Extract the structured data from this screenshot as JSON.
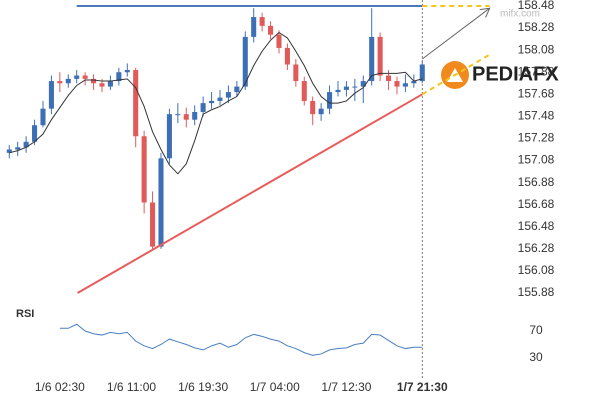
{
  "chart_data": {
    "type": "candlestick",
    "x": [
      0,
      1,
      2,
      3,
      4,
      5,
      6,
      7,
      8,
      9,
      10,
      11,
      12,
      13,
      14,
      15,
      16,
      17,
      18,
      19,
      20,
      21,
      22,
      23,
      24,
      25,
      26,
      27,
      28,
      29,
      30,
      31,
      32,
      33,
      34,
      35,
      36,
      37,
      38,
      39,
      40,
      41,
      42,
      43,
      44,
      45,
      46,
      47,
      48,
      49
    ],
    "open": [
      157.15,
      157.18,
      157.2,
      157.25,
      157.4,
      157.55,
      157.8,
      157.78,
      157.82,
      157.85,
      157.82,
      157.78,
      157.75,
      157.8,
      157.88,
      157.9,
      157.3,
      156.7,
      156.3,
      157.1,
      157.5,
      157.5,
      157.45,
      157.52,
      157.6,
      157.62,
      157.65,
      157.7,
      157.75,
      158.2,
      158.38,
      158.3,
      158.22,
      158.1,
      157.95,
      157.8,
      157.62,
      157.5,
      157.55,
      157.7,
      157.72,
      157.75,
      157.75,
      157.8,
      158.2,
      157.85,
      157.8,
      157.75,
      157.78,
      157.8
    ],
    "high": [
      157.22,
      157.25,
      157.3,
      157.45,
      157.62,
      157.85,
      157.88,
      157.86,
      157.9,
      157.88,
      157.86,
      157.82,
      157.85,
      157.92,
      157.96,
      157.92,
      157.35,
      156.8,
      157.15,
      157.55,
      157.6,
      157.56,
      157.58,
      157.66,
      157.7,
      157.72,
      157.76,
      157.8,
      158.25,
      158.46,
      158.42,
      158.34,
      158.26,
      158.14,
      158.0,
      157.84,
      157.66,
      157.6,
      157.76,
      157.8,
      157.8,
      157.82,
      157.85,
      158.46,
      158.24,
      157.9,
      157.84,
      157.86,
      157.86,
      157.98
    ],
    "low": [
      157.1,
      157.12,
      157.15,
      157.22,
      157.38,
      157.5,
      157.7,
      157.74,
      157.78,
      157.76,
      157.72,
      157.7,
      157.72,
      157.76,
      157.84,
      157.2,
      156.6,
      156.28,
      156.28,
      157.05,
      157.42,
      157.38,
      157.4,
      157.48,
      157.55,
      157.58,
      157.6,
      157.66,
      157.72,
      158.15,
      158.25,
      158.18,
      158.05,
      157.9,
      157.75,
      157.58,
      157.4,
      157.44,
      157.5,
      157.66,
      157.66,
      157.62,
      157.6,
      157.76,
      157.8,
      157.72,
      157.68,
      157.7,
      157.74,
      157.78
    ],
    "close": [
      157.18,
      157.2,
      157.25,
      157.4,
      157.55,
      157.8,
      157.78,
      157.82,
      157.85,
      157.82,
      157.78,
      157.75,
      157.8,
      157.88,
      157.9,
      157.3,
      156.7,
      156.3,
      157.1,
      157.5,
      157.5,
      157.45,
      157.52,
      157.6,
      157.62,
      157.65,
      157.7,
      157.75,
      158.2,
      158.38,
      158.3,
      158.22,
      158.1,
      157.95,
      157.8,
      157.62,
      157.5,
      157.55,
      157.7,
      157.72,
      157.75,
      157.75,
      157.8,
      158.2,
      157.85,
      157.8,
      157.75,
      157.78,
      157.8,
      157.95
    ],
    "up_color": "#3d6fb5",
    "down_color": "#e05a5a",
    "ma": {
      "color": "#333333",
      "values": [
        157.15,
        157.17,
        157.2,
        157.25,
        157.32,
        157.45,
        157.56,
        157.67,
        157.76,
        157.81,
        157.81,
        157.8,
        157.8,
        157.81,
        157.82,
        157.74,
        157.57,
        157.34,
        157.18,
        157.04,
        156.96,
        157.05,
        157.26,
        157.5,
        157.54,
        157.57,
        157.62,
        157.66,
        157.78,
        157.94,
        158.07,
        158.17,
        158.24,
        158.19,
        158.07,
        157.94,
        157.78,
        157.66,
        157.6,
        157.6,
        157.62,
        157.69,
        157.74,
        157.85,
        157.87,
        157.87,
        157.87,
        157.88,
        157.8,
        157.82
      ]
    },
    "xlim": [
      -1.1,
      68.9
    ],
    "xticks": [
      {
        "value": 6,
        "label": "1/6 02:30"
      },
      {
        "value": 14.5,
        "label": "1/6 11:00"
      },
      {
        "value": 23,
        "label": "1/6 19:30"
      },
      {
        "value": 31.5,
        "label": "1/7 04:00"
      },
      {
        "value": 40,
        "label": "1/7 12:30"
      },
      {
        "value": 49,
        "label": "1/7 21:30"
      }
    ],
    "ylim": [
      155.88,
      158.48
    ],
    "yticks": [
      155.88,
      156.08,
      156.28,
      156.48,
      156.68,
      156.88,
      157.08,
      157.28,
      157.48,
      157.68,
      157.88,
      158.08,
      158.28,
      158.48
    ],
    "lines": [
      {
        "x": [
          8,
          49
        ],
        "y": [
          158.48,
          158.48
        ],
        "color": "#4a78b8",
        "dashed": false,
        "arrow": false
      },
      {
        "x": [
          49,
          57
        ],
        "y": [
          158.48,
          158.48
        ],
        "color": "#f5c518",
        "dashed": true,
        "arrow": false
      },
      {
        "x": [
          8.1,
          49
        ],
        "y": [
          155.88,
          157.68
        ],
        "color": "#e85c5c",
        "dashed": false,
        "arrow": false
      },
      {
        "x": [
          49,
          57
        ],
        "y": [
          157.68,
          158.04
        ],
        "color": "#f5c518",
        "dashed": true,
        "arrow": false
      },
      {
        "x": [
          49,
          57
        ],
        "y": [
          158.0,
          158.46
        ],
        "color": "#666666",
        "dashed": false,
        "arrow": true
      }
    ],
    "current_x": 49,
    "rsi": {
      "label": "RSI",
      "color": "#4a7fc0",
      "ylim": [
        10,
        90
      ],
      "yticks": [
        30,
        70
      ],
      "values": [
        null,
        null,
        null,
        null,
        null,
        null,
        74,
        74,
        80,
        70,
        66,
        64,
        68,
        66,
        68,
        55,
        48,
        44,
        50,
        58,
        54,
        50,
        45,
        42,
        48,
        52,
        46,
        50,
        60,
        65,
        62,
        58,
        55,
        48,
        44,
        38,
        34,
        36,
        42,
        44,
        45,
        50,
        52,
        65,
        64,
        56,
        48,
        44,
        46,
        46
      ]
    },
    "watermark": "mifx.com",
    "logo": "PEDIAFX"
  }
}
